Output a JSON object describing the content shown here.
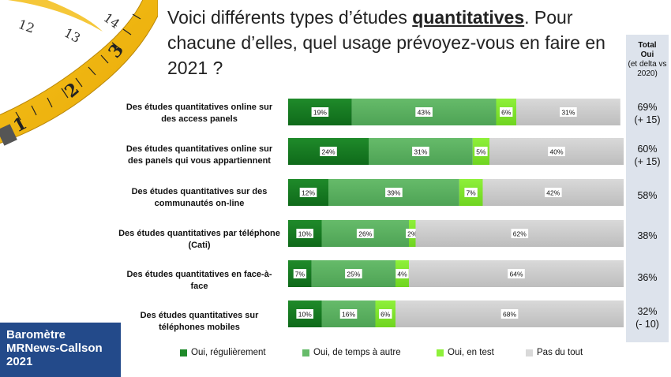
{
  "title": {
    "part1": "Voici différents types d’études ",
    "emphasis": "quantitatives",
    "part2": ". Pour chacune d’elles, quel usage prévoyez-vous en faire en 2021 ?"
  },
  "total_header": {
    "line1": "Total",
    "line2": "Oui",
    "line3": "(et delta vs 2020)"
  },
  "totals": [
    {
      "value": "69%",
      "delta": "(+ 15)"
    },
    {
      "value": "60%",
      "delta": "(+ 15)"
    },
    {
      "value": "58%",
      "delta": ""
    },
    {
      "value": "38%",
      "delta": ""
    },
    {
      "value": "36%",
      "delta": ""
    },
    {
      "value": "32%",
      "delta": "(- 10)"
    }
  ],
  "badge": {
    "line1": "Baromètre",
    "line2": "MRNews-Callson",
    "line3": "2021"
  },
  "colors": {
    "reguliere": "#1f8a2a",
    "temps": "#66bb6a",
    "test": "#8ef03a",
    "pas": "#d9d9d9",
    "total_panel": "#dde3ec",
    "badge": "#234a8a"
  },
  "chart_data": {
    "type": "bar",
    "orientation": "horizontal",
    "stacked": true,
    "categories": [
      "Des études quantitatives online sur des access panels",
      "Des études quantitatives online sur des panels qui vous appartiennent",
      "Des études quantitatives sur des communautés on-line",
      "Des études quantitatives par téléphone (Cati)",
      "Des études quantitatives en face-à-face",
      "Des études quantitatives sur téléphones mobiles"
    ],
    "series": [
      {
        "name": "Oui, régulièrement",
        "values": [
          19,
          24,
          12,
          10,
          7,
          10
        ],
        "labels": [
          "19%",
          "24%",
          "12%",
          "10%",
          "7%",
          "10%"
        ]
      },
      {
        "name": "Oui, de temps à autre",
        "values": [
          43,
          31,
          39,
          26,
          25,
          16
        ],
        "labels": [
          "43%",
          "31%",
          "39%",
          "26%",
          "25%",
          "16%"
        ]
      },
      {
        "name": "Oui, en test",
        "values": [
          6,
          5,
          7,
          2,
          4,
          6
        ],
        "labels": [
          "6%",
          "5%",
          "7%",
          "2%",
          "4%",
          "6%"
        ]
      },
      {
        "name": "Pas du tout",
        "values": [
          31,
          40,
          42,
          62,
          64,
          68
        ],
        "labels": [
          "31%",
          "40%",
          "42%",
          "62%",
          "64%",
          "68%"
        ]
      }
    ],
    "legend_position": "bottom",
    "xlim": [
      0,
      100
    ]
  }
}
